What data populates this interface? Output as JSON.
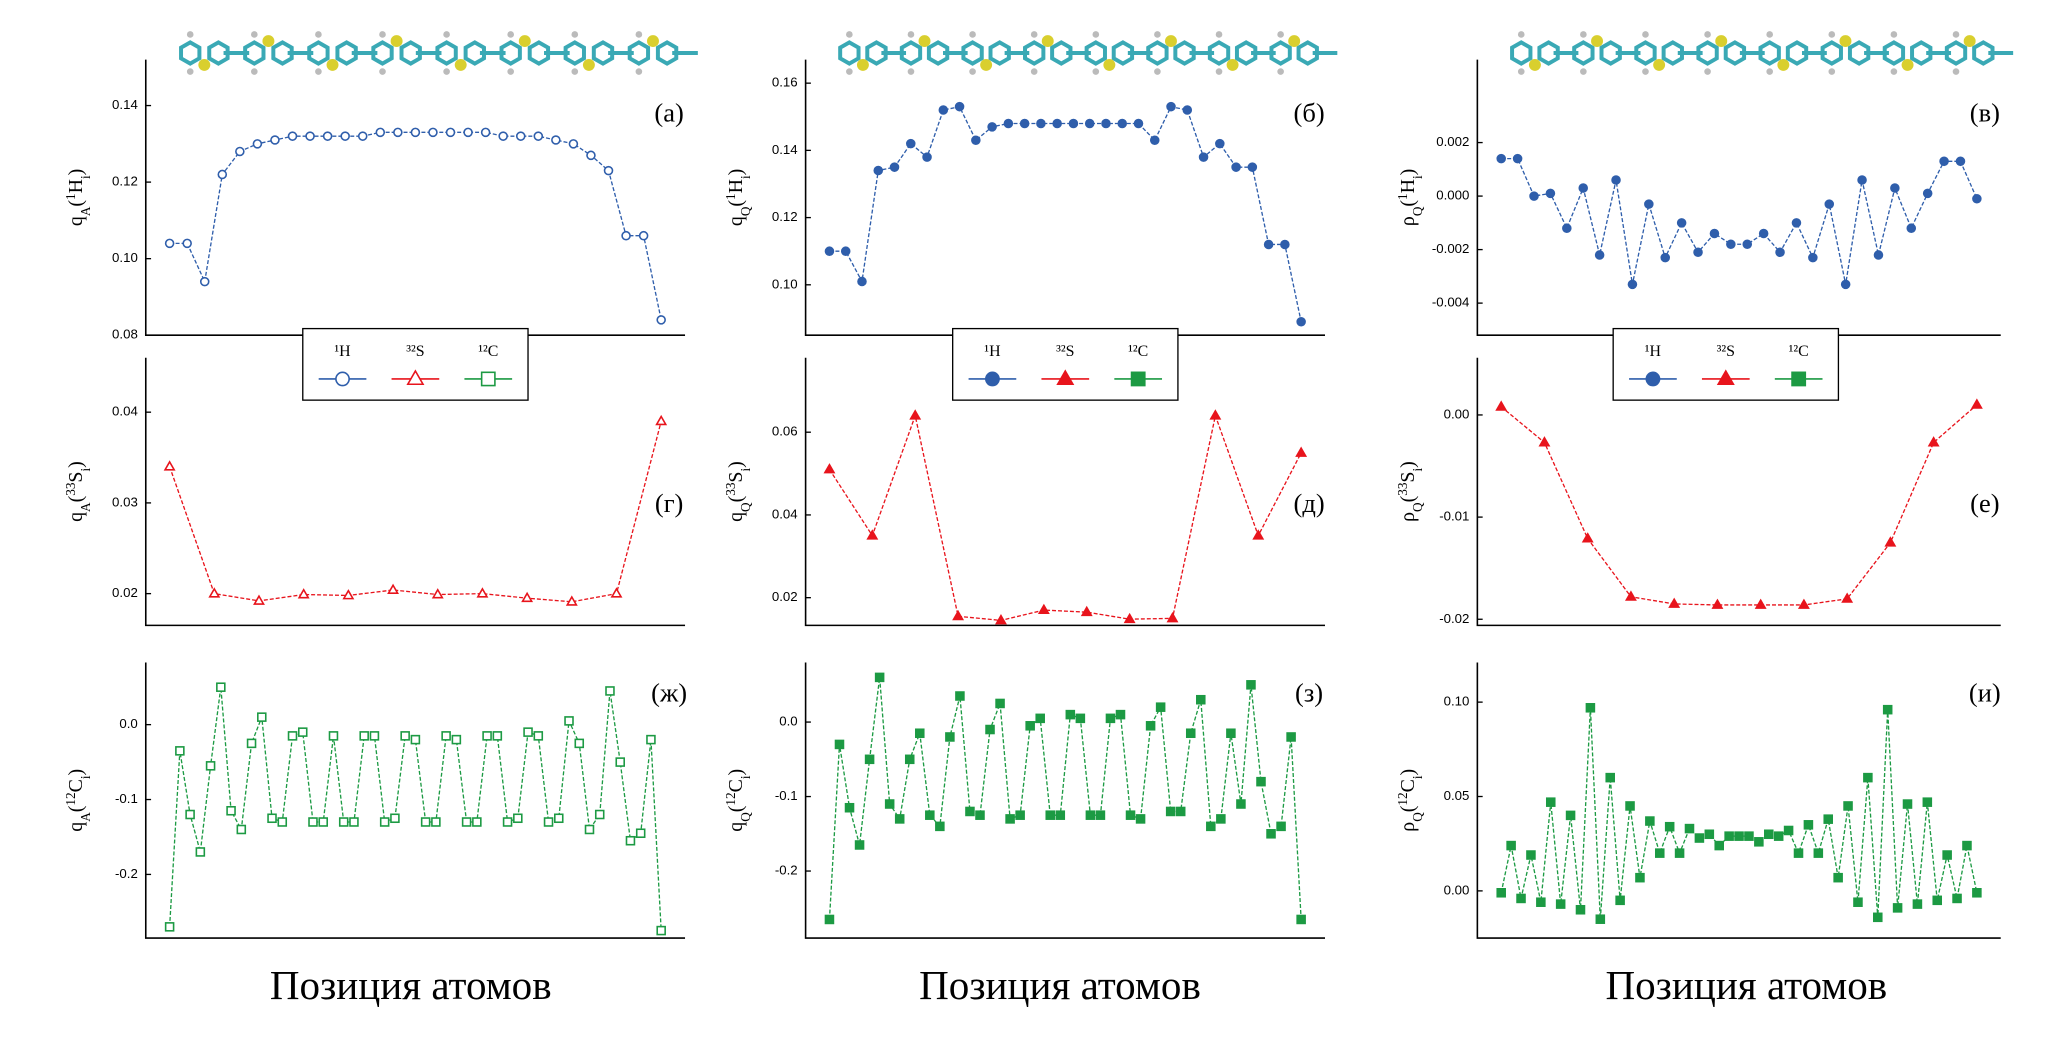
{
  "chart_data": [
    {
      "type": "line",
      "panel": "(а)",
      "ylabel": [
        "q",
        "A",
        "(",
        "1",
        "H",
        "i",
        ")"
      ],
      "ylim": [
        0.08,
        0.152
      ],
      "yticks": [
        0.08,
        {
          "value": 0.1,
          "label": "0.10"
        },
        0.12,
        0.14
      ],
      "color": "#2f5eab",
      "marker": "circle",
      "filled": false,
      "values": [
        0.104,
        0.104,
        0.094,
        0.122,
        0.128,
        0.13,
        0.131,
        0.132,
        0.132,
        0.132,
        0.132,
        0.132,
        0.133,
        0.133,
        0.133,
        0.133,
        0.133,
        0.133,
        0.133,
        0.132,
        0.132,
        0.132,
        0.131,
        0.13,
        0.127,
        0.123,
        0.106,
        0.106,
        0.084
      ],
      "legend": [
        {
          "name": "¹H",
          "color": "#2f5eab",
          "marker": "circle"
        },
        {
          "name": "³²S",
          "color": "#e8141c",
          "marker": "triangle"
        },
        {
          "name": "¹²C",
          "color": "#1c9a43",
          "marker": "square"
        }
      ]
    },
    {
      "type": "line",
      "panel": "(б)",
      "ylabel": [
        "q",
        "Q",
        "(",
        "1",
        "H",
        "i",
        ")"
      ],
      "ylim": [
        0.085,
        0.167
      ],
      "yticks": [
        {
          "value": 0.1,
          "label": "0.10"
        },
        0.12,
        0.14,
        0.16
      ],
      "color": "#2f5eab",
      "marker": "circle",
      "filled": true,
      "values": [
        0.11,
        0.11,
        0.101,
        0.134,
        0.135,
        0.142,
        0.138,
        0.152,
        0.153,
        0.143,
        0.147,
        0.148,
        0.148,
        0.148,
        0.148,
        0.148,
        0.148,
        0.148,
        0.148,
        0.148,
        0.143,
        0.153,
        0.152,
        0.138,
        0.142,
        0.135,
        0.135,
        0.112,
        0.112,
        0.089
      ],
      "legend": [
        {
          "name": "¹H",
          "color": "#2f5eab",
          "marker": "circle"
        },
        {
          "name": "³²S",
          "color": "#e8141c",
          "marker": "triangle"
        },
        {
          "name": "¹²C",
          "color": "#1c9a43",
          "marker": "square"
        }
      ]
    },
    {
      "type": "line",
      "panel": "(в)",
      "ylabel": [
        "ρ",
        "Q",
        "(",
        "1",
        "H",
        "i",
        ")"
      ],
      "ylim": [
        -0.0052,
        0.0051
      ],
      "yticks": [
        -0.004,
        -0.002,
        {
          "value": 0,
          "label": "0.000"
        },
        0.002
      ],
      "color": "#2f5eab",
      "marker": "circle",
      "filled": true,
      "values": [
        0.0014,
        0.0014,
        0.0,
        0.0001,
        -0.0012,
        0.0003,
        -0.0022,
        0.0006,
        -0.0033,
        -0.0003,
        -0.0023,
        -0.001,
        -0.0021,
        -0.0014,
        -0.0018,
        -0.0018,
        -0.0014,
        -0.0021,
        -0.001,
        -0.0023,
        -0.0003,
        -0.0033,
        0.0006,
        -0.0022,
        0.0003,
        -0.0012,
        0.0001,
        0.0013,
        0.0013,
        -0.0001
      ],
      "legend": [
        {
          "name": "¹H",
          "color": "#2f5eab",
          "marker": "circle"
        },
        {
          "name": "³²S",
          "color": "#e8141c",
          "marker": "triangle"
        },
        {
          "name": "¹²C",
          "color": "#1c9a43",
          "marker": "square"
        }
      ]
    },
    {
      "type": "line",
      "panel": "(г)",
      "ylabel": [
        "q",
        "A",
        "(",
        "33",
        "S",
        "i",
        ")"
      ],
      "ylim": [
        0.0165,
        0.046
      ],
      "yticks": [
        0.02,
        0.03,
        0.04
      ],
      "color": "#e8141c",
      "marker": "triangle",
      "filled": false,
      "values": [
        0.034,
        0.02,
        0.0192,
        0.0199,
        0.0198,
        0.0204,
        0.0199,
        0.02,
        0.0195,
        0.0191,
        0.02,
        0.039
      ]
    },
    {
      "type": "line",
      "panel": "(д)",
      "ylabel": [
        "q",
        "Q",
        "(",
        "33",
        "S",
        "i",
        ")"
      ],
      "ylim": [
        0.0133,
        0.078
      ],
      "yticks": [
        0.02,
        0.04,
        0.06
      ],
      "color": "#e8141c",
      "marker": "triangle",
      "filled": true,
      "values": [
        0.051,
        0.035,
        0.064,
        0.0155,
        0.0145,
        0.017,
        0.0165,
        0.0148,
        0.015,
        0.064,
        0.035,
        0.055
      ]
    },
    {
      "type": "line",
      "panel": "(е)",
      "ylabel": [
        "ρ",
        "Q",
        "(",
        "33",
        "S",
        "i",
        ")"
      ],
      "ylim": [
        -0.0206,
        0.0056
      ],
      "yticks": [
        -0.02,
        -0.01,
        {
          "value": 0,
          "label": "0.00"
        }
      ],
      "color": "#e8141c",
      "marker": "triangle",
      "filled": true,
      "values": [
        0.0008,
        -0.0027,
        -0.0121,
        -0.0178,
        -0.0185,
        -0.0186,
        -0.0186,
        -0.0186,
        -0.018,
        -0.0125,
        -0.0027,
        0.001
      ]
    },
    {
      "type": "line",
      "panel": "(ж)",
      "ylabel": [
        "q",
        "A",
        "(",
        "12",
        "C",
        "i",
        ")"
      ],
      "ylim": [
        -0.285,
        0.083
      ],
      "yticks": [
        -0.2,
        -0.1,
        {
          "value": 0,
          "label": "0.0"
        }
      ],
      "color": "#1c9a43",
      "marker": "square",
      "filled": false,
      "values": [
        -0.27,
        -0.035,
        -0.12,
        -0.17,
        -0.055,
        0.05,
        -0.115,
        -0.14,
        -0.025,
        0.01,
        -0.125,
        -0.13,
        -0.015,
        -0.01,
        -0.13,
        -0.13,
        -0.015,
        -0.13,
        -0.13,
        -0.015,
        -0.015,
        -0.13,
        -0.125,
        -0.015,
        -0.02,
        -0.13,
        -0.13,
        -0.015,
        -0.02,
        -0.13,
        -0.13,
        -0.015,
        -0.015,
        -0.13,
        -0.125,
        -0.01,
        -0.015,
        -0.13,
        -0.125,
        0.005,
        -0.025,
        -0.14,
        -0.12,
        0.045,
        -0.05,
        -0.155,
        -0.145,
        -0.02,
        -0.275
      ]
    },
    {
      "type": "line",
      "panel": "(з)",
      "ylabel": [
        "q",
        "Q",
        "(",
        "12",
        "C",
        "i",
        ")"
      ],
      "ylim": [
        -0.29,
        0.08
      ],
      "yticks": [
        -0.2,
        -0.1,
        {
          "value": 0,
          "label": "0.0"
        }
      ],
      "color": "#1c9a43",
      "marker": "square",
      "filled": true,
      "values": [
        -0.265,
        -0.03,
        -0.115,
        -0.165,
        -0.05,
        0.06,
        -0.11,
        -0.13,
        -0.05,
        -0.015,
        -0.125,
        -0.14,
        -0.02,
        0.035,
        -0.12,
        -0.125,
        -0.01,
        0.025,
        -0.13,
        -0.125,
        -0.005,
        0.005,
        -0.125,
        -0.125,
        0.01,
        0.005,
        -0.125,
        -0.125,
        0.005,
        0.01,
        -0.125,
        -0.13,
        -0.005,
        0.02,
        -0.12,
        -0.12,
        -0.015,
        0.03,
        -0.14,
        -0.13,
        -0.015,
        -0.11,
        0.05,
        -0.08,
        -0.15,
        -0.14,
        -0.02,
        -0.265
      ]
    },
    {
      "type": "line",
      "panel": "(и)",
      "ylabel": [
        "ρ",
        "Q",
        "(",
        "12",
        "C",
        "i",
        ")"
      ],
      "ylim": [
        -0.025,
        0.121
      ],
      "yticks": [
        {
          "value": 0,
          "label": "0.00"
        },
        0.05,
        {
          "value": 0.1,
          "label": "0.10"
        }
      ],
      "color": "#1c9a43",
      "marker": "square",
      "filled": true,
      "values": [
        -0.001,
        0.024,
        -0.004,
        0.019,
        -0.006,
        0.047,
        -0.007,
        0.04,
        -0.01,
        0.097,
        -0.015,
        0.06,
        -0.005,
        0.045,
        0.007,
        0.037,
        0.02,
        0.034,
        0.02,
        0.033,
        0.028,
        0.03,
        0.024,
        0.029,
        0.029,
        0.029,
        0.026,
        0.03,
        0.029,
        0.032,
        0.02,
        0.035,
        0.02,
        0.038,
        0.007,
        0.045,
        -0.006,
        0.06,
        -0.014,
        0.096,
        -0.009,
        0.046,
        -0.007,
        0.047,
        -0.005,
        0.019,
        -0.004,
        0.024,
        -0.001
      ]
    }
  ],
  "x_axis_labels": [
    "Позиция атомов",
    "Позиция атомов",
    "Позиция атомов"
  ]
}
